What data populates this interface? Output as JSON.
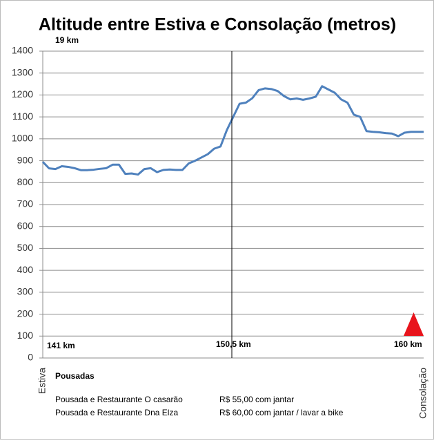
{
  "chart_data": {
    "type": "line",
    "title": "Altitude entre Estiva e Consolação (metros)",
    "annotations": [
      "19 km",
      "141 km",
      "150,5 km",
      "160 km"
    ],
    "categories": [
      "Estiva",
      null,
      null,
      null,
      null,
      null,
      null,
      null,
      null,
      null,
      null,
      null,
      null,
      null,
      null,
      null,
      null,
      null,
      null,
      null,
      null,
      null,
      null,
      null,
      null,
      null,
      null,
      null,
      null,
      null,
      null,
      null,
      null,
      null,
      null,
      null,
      null,
      null,
      null,
      null,
      null,
      null,
      null,
      null,
      null,
      null,
      null,
      null,
      null,
      null,
      null,
      null,
      null,
      null,
      null,
      null,
      null,
      null,
      null,
      null,
      "Consolação"
    ],
    "series": [
      {
        "name": "Altitude",
        "color": "#4f81bd",
        "values": [
          895,
          865,
          862,
          875,
          872,
          866,
          857,
          857,
          859,
          863,
          866,
          882,
          882,
          840,
          842,
          837,
          862,
          866,
          848,
          858,
          860,
          858,
          858,
          888,
          900,
          915,
          930,
          955,
          965,
          1040,
          1100,
          1160,
          1165,
          1185,
          1222,
          1230,
          1227,
          1218,
          1195,
          1180,
          1184,
          1178,
          1184,
          1192,
          1240,
          1225,
          1210,
          1180,
          1165,
          1110,
          1100,
          1035,
          1032,
          1030,
          1026,
          1024,
          1012,
          1028,
          1032,
          1032,
          1032
        ]
      }
    ],
    "ylim": [
      0,
      1400
    ],
    "yticks": [
      0,
      100,
      200,
      300,
      400,
      500,
      600,
      700,
      800,
      900,
      1000,
      1100,
      1200,
      1300,
      1400
    ],
    "grid": true,
    "notes": {
      "heading": "Pousadas",
      "rows": [
        [
          "Pousada e Restaurante O casarão",
          "R$ 55,00 com jantar"
        ],
        [
          "Pousada e Restaurante Dna Elza",
          "R$ 60,00 com jantar / lavar a bike"
        ]
      ]
    }
  }
}
